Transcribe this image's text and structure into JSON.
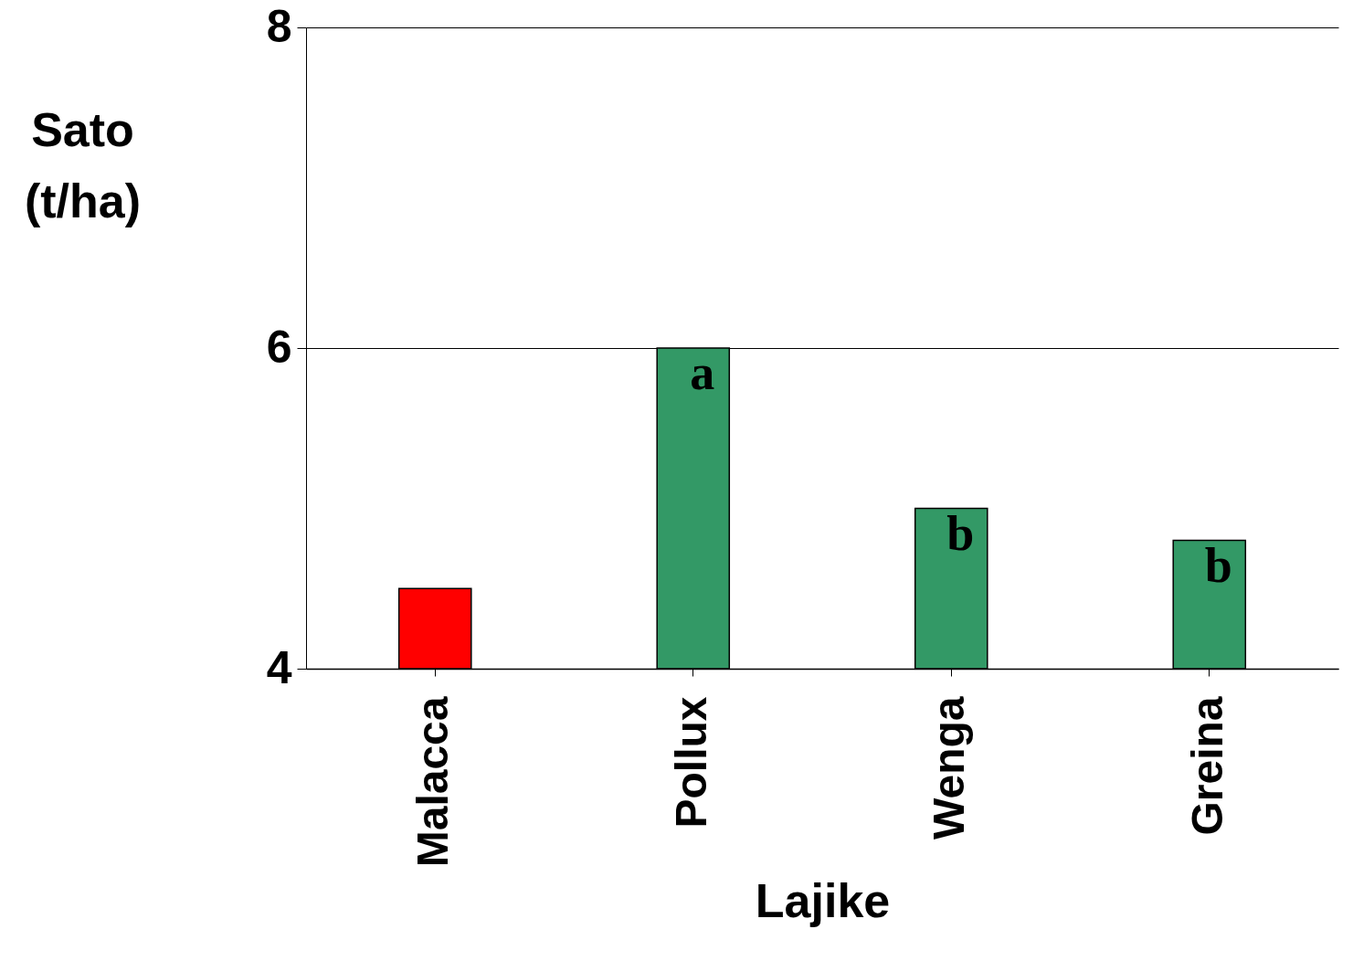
{
  "chart_data": {
    "type": "bar",
    "xlabel": "Lajike",
    "ylabel": "Sato (t/ha)",
    "categories": [
      "Malacca",
      "Pollux",
      "Wenga",
      "Greina"
    ],
    "values": [
      4.5,
      6.0,
      5.0,
      4.8
    ],
    "colors": [
      "#ff0000",
      "#339966",
      "#339966",
      "#339966"
    ],
    "ylim": [
      4,
      8
    ],
    "yticks": [
      4,
      6,
      8
    ],
    "grid": "y",
    "annotations": [
      {
        "text": "a",
        "x": "Pollux",
        "y": 6.0
      },
      {
        "text": "b",
        "x": "Wenga",
        "y": 5.0
      },
      {
        "text": "b",
        "x": "Greina",
        "y": 4.8
      }
    ]
  }
}
